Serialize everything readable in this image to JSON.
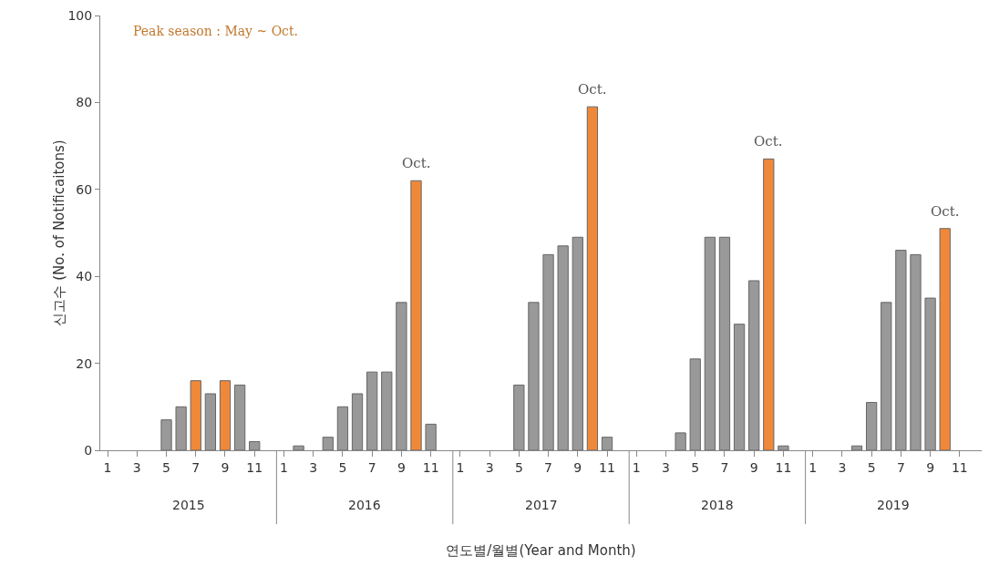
{
  "chart_data": {
    "type": "bar",
    "xlabel": "연도별/월별(Year and Month)",
    "ylabel": "신고수 (No. of Notificaitons)",
    "categories": [
      "1",
      null,
      "3",
      null,
      "5",
      null,
      "7",
      null,
      "9",
      null,
      "11",
      null,
      "1",
      null,
      "3",
      null,
      "5",
      null,
      "7",
      null,
      "9",
      null,
      "11",
      null,
      "1",
      null,
      "3",
      null,
      "5",
      null,
      "7",
      null,
      "9",
      null,
      "11",
      null,
      "1",
      null,
      "3",
      null,
      "5",
      null,
      "7",
      null,
      "9",
      null,
      "11",
      null,
      "1",
      null,
      "3",
      null,
      "5",
      null,
      "7",
      null,
      "9",
      null,
      "11",
      null
    ],
    "series": [
      {
        "values": [
          0,
          0,
          0,
          0,
          7,
          10,
          16,
          13,
          16,
          15,
          2,
          0,
          0,
          1,
          0,
          3,
          10,
          13,
          18,
          18,
          34,
          62,
          6,
          0,
          0,
          0,
          0,
          0,
          15,
          34,
          45,
          47,
          49,
          79,
          3,
          0,
          0,
          0,
          0,
          4,
          21,
          49,
          49,
          29,
          39,
          67,
          1,
          0,
          0,
          0,
          0,
          1,
          11,
          34,
          46,
          45,
          35,
          51,
          0,
          0
        ],
        "colors": [
          "#999999",
          "#999999",
          "#999999",
          "#999999",
          "#999999",
          "#999999",
          "#f0883a",
          "#999999",
          "#f0883a",
          "#999999",
          "#999999",
          "#999999",
          "#999999",
          "#999999",
          "#999999",
          "#999999",
          "#999999",
          "#999999",
          "#999999",
          "#999999",
          "#999999",
          "#f0883a",
          "#999999",
          "#999999",
          "#999999",
          "#999999",
          "#999999",
          "#999999",
          "#999999",
          "#999999",
          "#999999",
          "#999999",
          "#999999",
          "#f0883a",
          "#999999",
          "#999999",
          "#999999",
          "#999999",
          "#999999",
          "#999999",
          "#999999",
          "#999999",
          "#999999",
          "#999999",
          "#999999",
          "#f0883a",
          "#999999",
          "#999999",
          "#999999",
          "#999999",
          "#999999",
          "#999999",
          "#999999",
          "#999999",
          "#999999",
          "#999999",
          "#999999",
          "#f0883a",
          "#999999",
          "#999999"
        ]
      }
    ],
    "ylim": [
      0,
      100
    ],
    "yticks": [
      0,
      20,
      40,
      60,
      80,
      100
    ],
    "grid": false,
    "legend": false,
    "annotations": [
      "Peak season : May ~ Oct.",
      {
        "text": "Oct.",
        "y": 62
      },
      {
        "text": "Oct.",
        "y": 79
      },
      {
        "text": "Oct.",
        "y": 67
      },
      {
        "text": "Oct.",
        "y": 51
      },
      "2015",
      "2016",
      "2017",
      "2018",
      "2019"
    ]
  }
}
